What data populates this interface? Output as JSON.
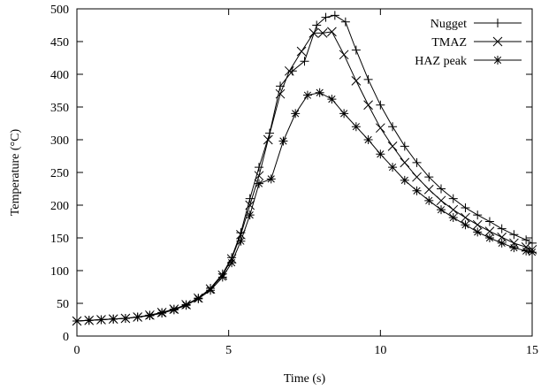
{
  "chart_data": {
    "type": "line",
    "xlabel": "Time (s)",
    "ylabel": "Temperature (°C)",
    "xlim": [
      0,
      15
    ],
    "ylim": [
      0,
      500
    ],
    "xticks": [
      0,
      5,
      10,
      15
    ],
    "yticks": [
      0,
      50,
      100,
      150,
      200,
      250,
      300,
      350,
      400,
      450,
      500
    ],
    "grid": false,
    "legend": "top-right",
    "series": [
      {
        "name": "Nugget",
        "marker": "plus",
        "x": [
          0,
          0.4,
          0.8,
          1.2,
          1.6,
          2.0,
          2.4,
          2.8,
          3.2,
          3.6,
          4.0,
          4.4,
          4.8,
          5.1,
          5.4,
          5.7,
          6.0,
          6.35,
          6.7,
          7.1,
          7.5,
          7.9,
          8.2,
          8.5,
          8.85,
          9.2,
          9.6,
          10.0,
          10.4,
          10.8,
          11.2,
          11.6,
          12.0,
          12.4,
          12.8,
          13.2,
          13.6,
          14.0,
          14.4,
          14.8,
          15.0
        ],
        "values": [
          23,
          24,
          25,
          26,
          27,
          29,
          32,
          36,
          41,
          48,
          58,
          73,
          95,
          120,
          158,
          210,
          258,
          310,
          382,
          405,
          420,
          475,
          487,
          490,
          480,
          437,
          392,
          353,
          320,
          290,
          265,
          243,
          225,
          210,
          196,
          185,
          175,
          164,
          155,
          147,
          142
        ]
      },
      {
        "name": "TMAZ",
        "marker": "x",
        "x": [
          0,
          0.4,
          0.8,
          1.2,
          1.6,
          2.0,
          2.4,
          2.8,
          3.2,
          3.6,
          4.0,
          4.4,
          4.8,
          5.1,
          5.4,
          5.7,
          6.0,
          6.3,
          6.7,
          7.0,
          7.4,
          7.8,
          8.1,
          8.4,
          8.8,
          9.2,
          9.6,
          10.0,
          10.4,
          10.8,
          11.2,
          11.6,
          12.0,
          12.4,
          12.8,
          13.2,
          13.6,
          14.0,
          14.4,
          14.8,
          15.0
        ],
        "values": [
          23,
          24,
          25,
          26,
          27,
          29,
          32,
          36,
          41,
          48,
          58,
          72,
          93,
          118,
          155,
          200,
          245,
          300,
          370,
          405,
          435,
          463,
          463,
          465,
          430,
          390,
          353,
          318,
          290,
          265,
          243,
          224,
          207,
          193,
          181,
          170,
          160,
          151,
          142,
          136,
          132
        ]
      },
      {
        "name": "HAZ peak",
        "marker": "star",
        "x": [
          0,
          0.4,
          0.8,
          1.2,
          1.6,
          2.0,
          2.4,
          2.8,
          3.2,
          3.6,
          4.0,
          4.4,
          4.8,
          5.1,
          5.4,
          5.7,
          6.0,
          6.4,
          6.8,
          7.2,
          7.6,
          8.0,
          8.4,
          8.8,
          9.2,
          9.6,
          10.0,
          10.4,
          10.8,
          11.2,
          11.6,
          12.0,
          12.4,
          12.8,
          13.2,
          13.6,
          14.0,
          14.4,
          14.8,
          15.0
        ],
        "values": [
          23,
          24,
          25,
          26,
          27,
          29,
          31,
          35,
          40,
          47,
          57,
          70,
          90,
          112,
          145,
          185,
          233,
          240,
          298,
          340,
          368,
          372,
          362,
          340,
          320,
          300,
          278,
          258,
          238,
          222,
          207,
          193,
          181,
          170,
          159,
          150,
          142,
          135,
          130,
          128
        ]
      }
    ]
  }
}
